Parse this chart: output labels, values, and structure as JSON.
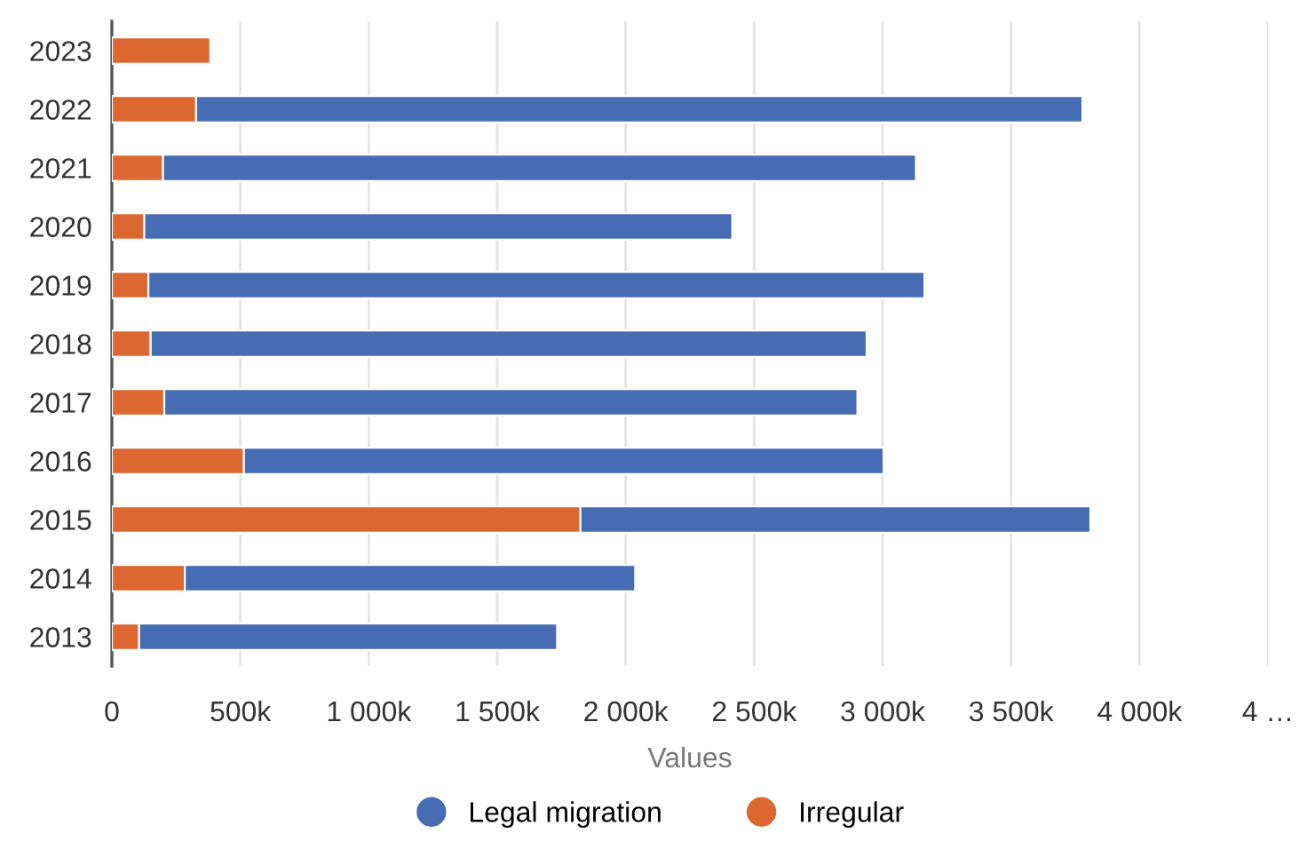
{
  "chart_data": {
    "type": "bar",
    "orientation": "horizontal",
    "stacked": true,
    "categories": [
      "2023",
      "2022",
      "2021",
      "2020",
      "2019",
      "2018",
      "2017",
      "2016",
      "2015",
      "2014",
      "2013"
    ],
    "series": [
      {
        "name": "Irregular",
        "color": "#dc6730",
        "values": [
          383000,
          328000,
          199000,
          126000,
          142000,
          151000,
          204000,
          514000,
          1824000,
          284000,
          106000
        ]
      },
      {
        "name": "Legal migration",
        "color": "#466cb4",
        "values": [
          null,
          3450000,
          2931000,
          2289000,
          3021000,
          2787000,
          2698000,
          2490000,
          1985000,
          1753000,
          1627000
        ]
      }
    ],
    "xlabel": "Values",
    "xlim": [
      0,
      4500000
    ],
    "xticks": [
      0,
      {
        "value": 500000,
        "label": "500k"
      },
      {
        "value": 1000000,
        "label": "1 000k"
      },
      {
        "value": 1500000,
        "label": "1 500k"
      },
      {
        "value": 2000000,
        "label": "2 000k"
      },
      {
        "value": 2500000,
        "label": "2 500k"
      },
      {
        "value": 3000000,
        "label": "3 000k"
      },
      {
        "value": 3500000,
        "label": "3 500k"
      },
      {
        "value": 4000000,
        "label": "4 000k"
      },
      {
        "value": 4500000,
        "label": "4 …"
      }
    ],
    "grid": "x",
    "legend": "bottom"
  }
}
